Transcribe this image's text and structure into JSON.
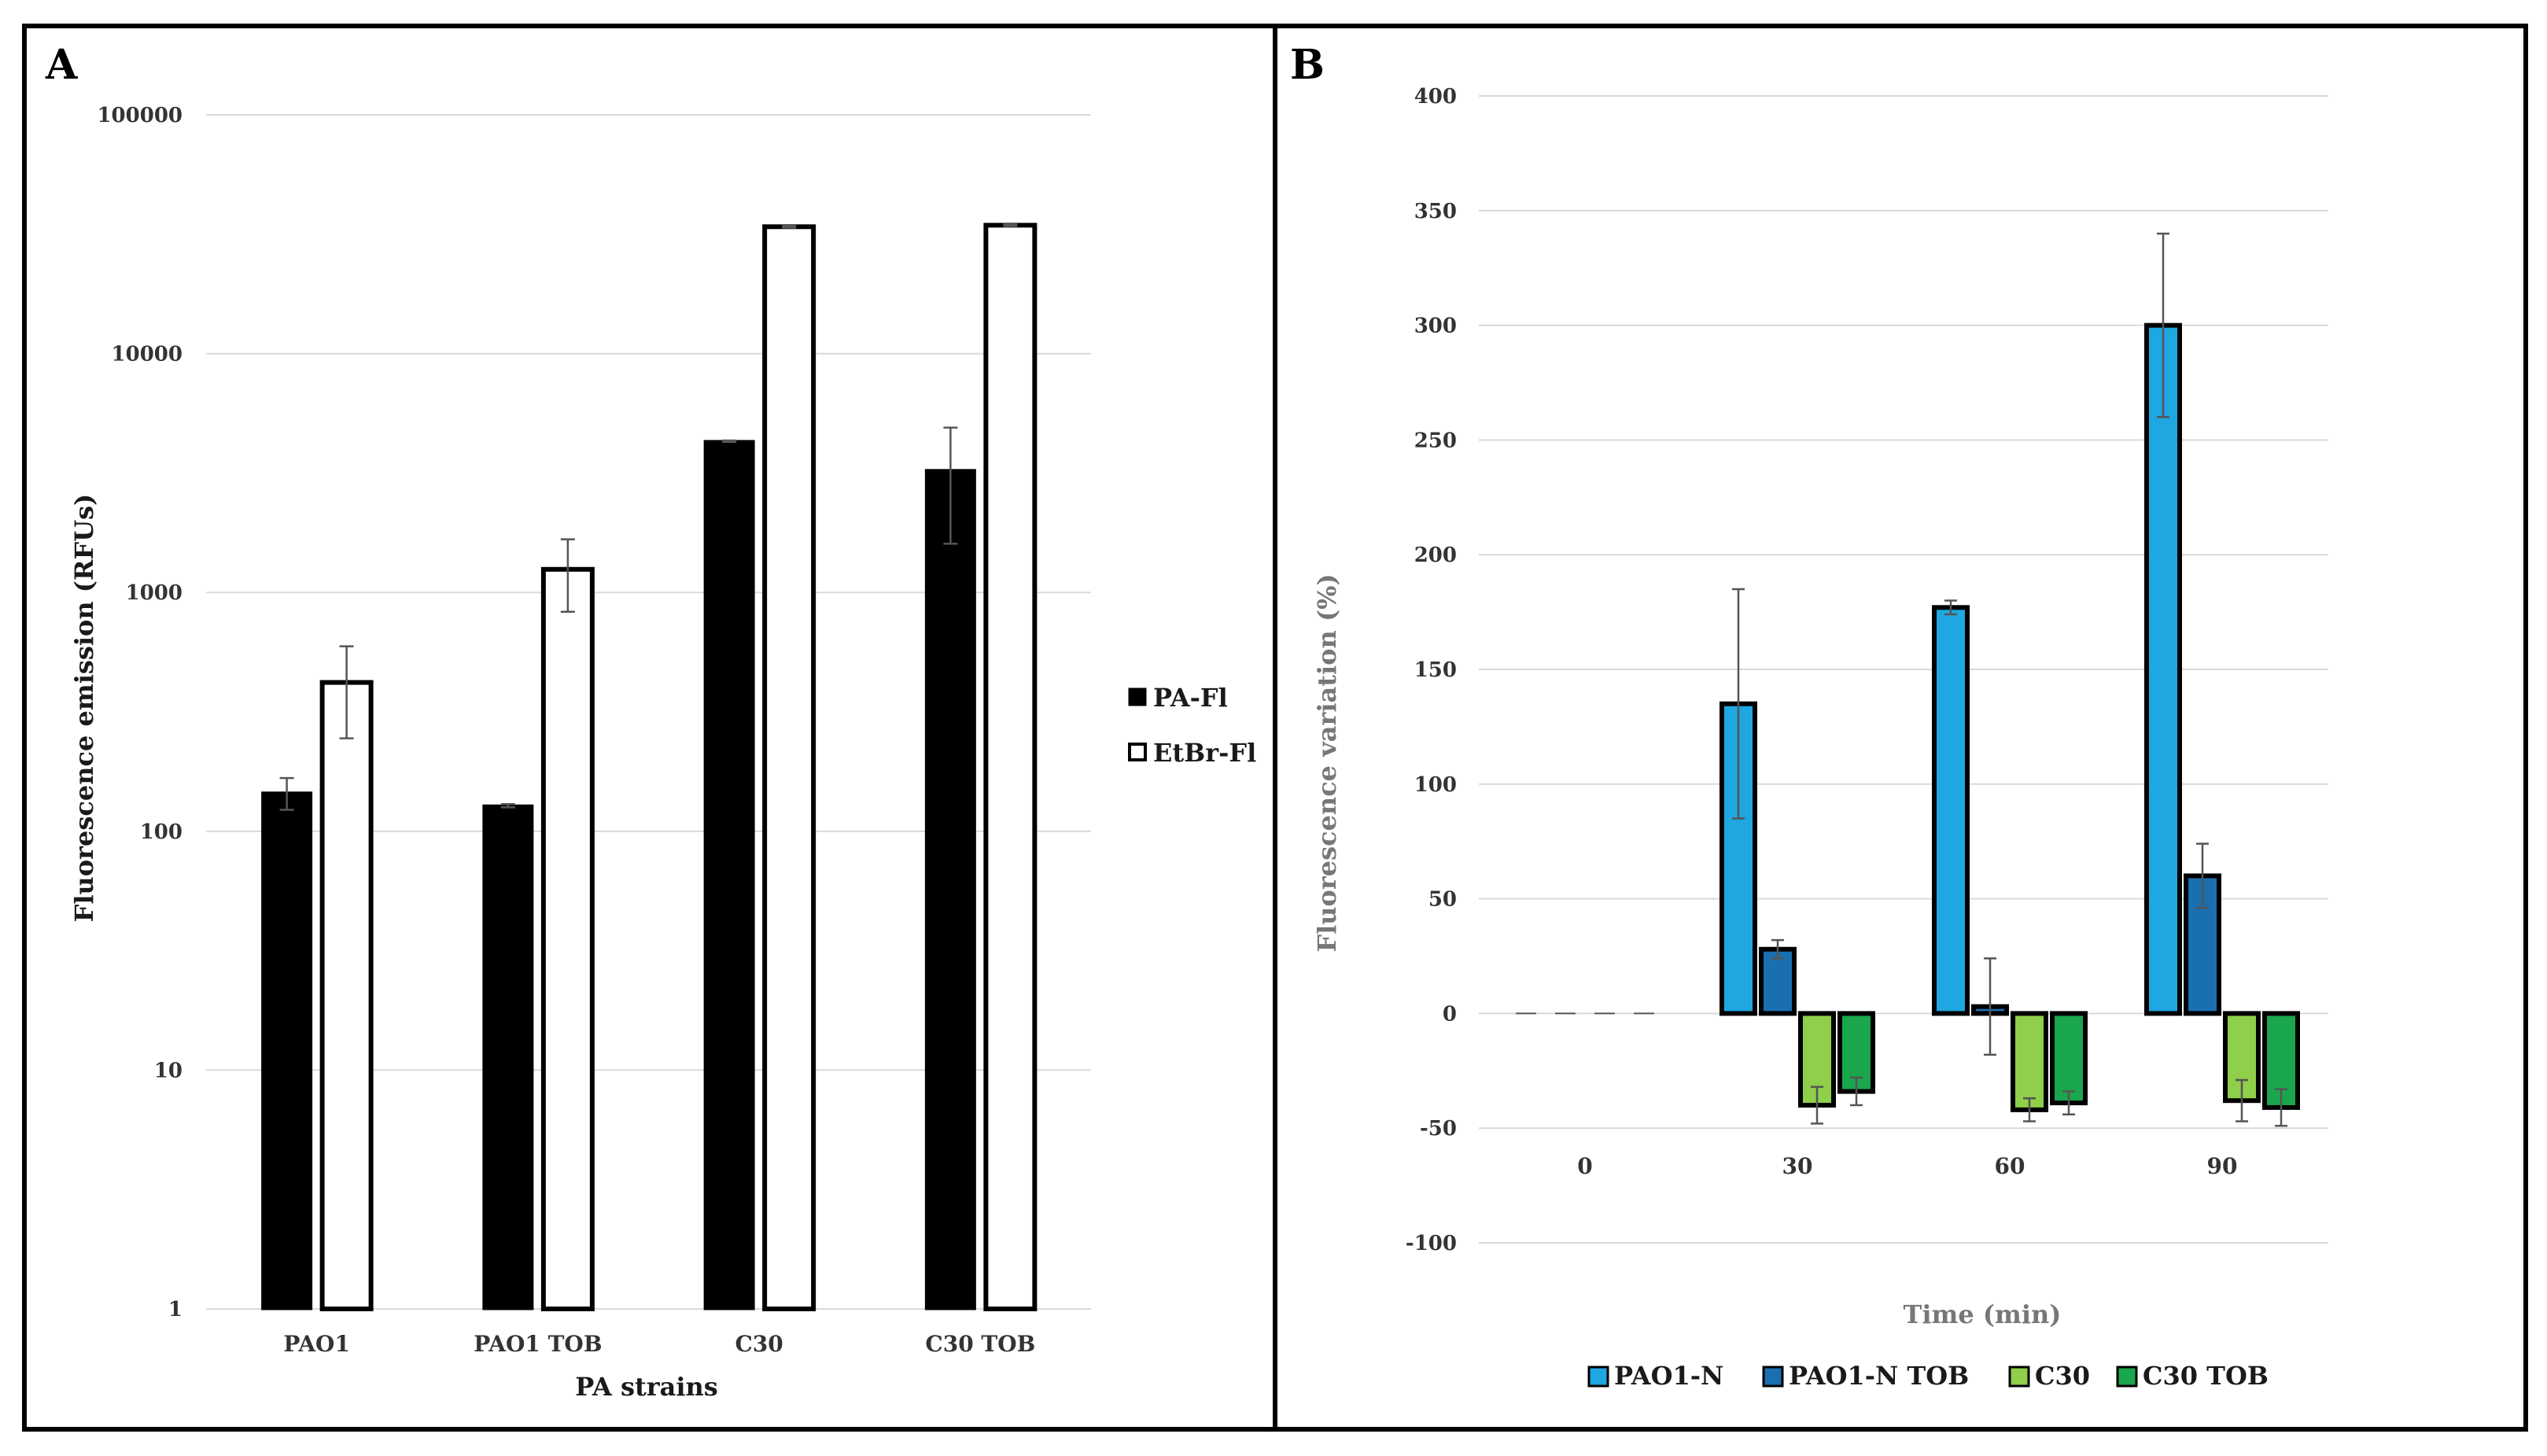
{
  "figure": {
    "panels": [
      "A",
      "B"
    ]
  },
  "chart_data": [
    {
      "id": "A",
      "type": "bar",
      "scale": "log10",
      "title": "",
      "panel_label": "A",
      "xlabel": "PA strains",
      "ylabel": "Fluorescence emission (RFUs)",
      "ylim": [
        1,
        100000
      ],
      "yticks": [
        "1",
        "10",
        "100",
        "1000",
        "10000",
        "100000"
      ],
      "categories": [
        "PAO1",
        "PAO1 TOB",
        "C30",
        "C30 TOB"
      ],
      "legend_position": "right",
      "series": [
        {
          "name": "PA-Fl",
          "color": "#000000",
          "style": "filled",
          "values": [
            145,
            128,
            4300,
            3250
          ],
          "errors": [
            22,
            2,
            30,
            1650
          ]
        },
        {
          "name": "EtBr-Fl",
          "color": "#ffffff",
          "style": "outline",
          "values": [
            420,
            1250,
            34000,
            34500
          ],
          "errors": [
            175,
            420,
            300,
            300
          ]
        }
      ]
    },
    {
      "id": "B",
      "type": "bar",
      "scale": "linear",
      "title": "",
      "panel_label": "B",
      "xlabel": "Time (min)",
      "ylabel": "Fluorescence variation (%)",
      "ylim": [
        -100,
        400
      ],
      "yticks": [
        "-100",
        "-50",
        "0",
        "50",
        "100",
        "150",
        "200",
        "250",
        "300",
        "350",
        "400"
      ],
      "categories": [
        "0",
        "30",
        "60",
        "90"
      ],
      "legend_position": "bottom",
      "series": [
        {
          "name": "PAO1-N",
          "color": "#1ea7e1",
          "values": [
            0,
            135,
            177,
            300
          ],
          "errors": [
            0,
            50,
            3,
            40
          ]
        },
        {
          "name": "PAO1-N TOB",
          "color": "#1a6fb0",
          "values": [
            0,
            28,
            3,
            60
          ],
          "errors": [
            0,
            4,
            21,
            14
          ]
        },
        {
          "name": "C30",
          "color": "#8fcf4a",
          "values": [
            0,
            -40,
            -42,
            -38
          ],
          "errors": [
            0,
            8,
            5,
            9
          ]
        },
        {
          "name": "C30 TOB",
          "color": "#1aa64c",
          "values": [
            0,
            -34,
            -39,
            -41
          ],
          "errors": [
            0,
            6,
            5,
            8
          ]
        }
      ]
    }
  ]
}
